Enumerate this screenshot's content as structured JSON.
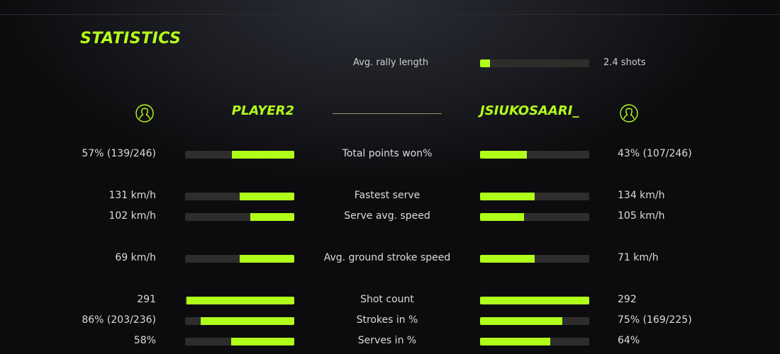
{
  "title": "STATISTICS",
  "rally": {
    "label": "Avg. rally length",
    "value": "2.4 shots",
    "fill": 0.09
  },
  "players": {
    "left": {
      "name": "PLAYER2",
      "icon": "user-circle-icon"
    },
    "right": {
      "name": "JSIUKOSAARI_",
      "icon": "user-circle-icon"
    }
  },
  "accent": "#b0ff1a",
  "stats": [
    {
      "label": "Total points won%",
      "left": "57% (139/246)",
      "right": "43% (107/246)",
      "left_fill": 0.57,
      "right_fill": 0.43
    },
    {
      "label": "Fastest serve",
      "left": "131 km/h",
      "right": "134 km/h",
      "left_fill": 0.5,
      "right_fill": 0.5
    },
    {
      "label": "Serve avg. speed",
      "left": "102 km/h",
      "right": "105 km/h",
      "left_fill": 0.4,
      "right_fill": 0.4
    },
    {
      "label": "Avg. ground stroke speed",
      "left": "69 km/h",
      "right": "71 km/h",
      "left_fill": 0.5,
      "right_fill": 0.5
    },
    {
      "label": "Shot count",
      "left": "291",
      "right": "292",
      "left_fill": 0.99,
      "right_fill": 1.0
    },
    {
      "label": "Strokes in %",
      "left": "86% (203/236)",
      "right": "75% (169/225)",
      "left_fill": 0.86,
      "right_fill": 0.75
    },
    {
      "label": "Serves in %",
      "left": "58%",
      "right": "64%",
      "left_fill": 0.58,
      "right_fill": 0.64
    }
  ]
}
